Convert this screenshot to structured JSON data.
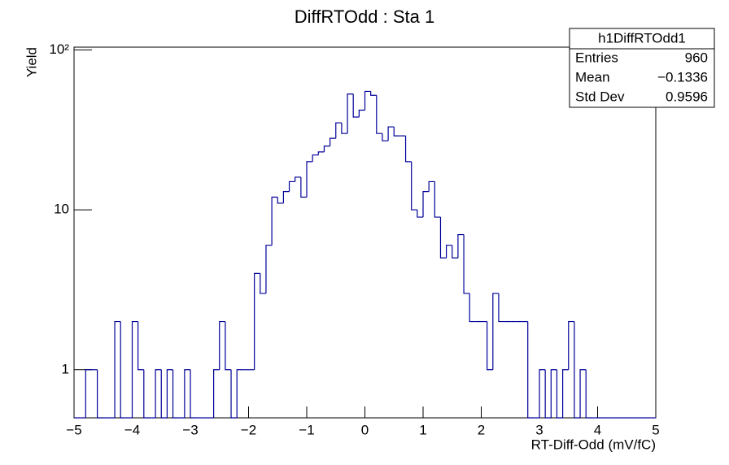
{
  "chart_data": {
    "type": "histogram",
    "title": "DiffRTOdd : Sta 1",
    "x_label": "RT-Diff-Odd (mV/fC)",
    "y_label": "Yield",
    "color": "#000099",
    "log_y": true,
    "bins": [
      -5,
      -4.9,
      -4.8,
      -4.7,
      -4.6,
      -4.5,
      -4.4,
      -4.3,
      -4.2,
      -4.1,
      -4,
      -3.9,
      -3.8,
      -3.7,
      -3.6,
      -3.5,
      -3.4,
      -3.3,
      -3.2,
      -3.1,
      -3,
      -2.9,
      -2.8,
      -2.7,
      -2.6,
      -2.5,
      -2.4,
      -2.3,
      -2.2,
      -2.1,
      -2,
      -1.9,
      -1.8,
      -1.7,
      -1.6,
      -1.5,
      -1.4,
      -1.3,
      -1.2,
      -1.1,
      -1,
      -0.9,
      -0.8,
      -0.7,
      -0.6,
      -0.5,
      -0.4,
      -0.3,
      -0.2,
      -0.1,
      0,
      0.1,
      0.2,
      0.3,
      0.4,
      0.5,
      0.6,
      0.7,
      0.8,
      0.9,
      1,
      1.1,
      1.2,
      1.3,
      1.4,
      1.5,
      1.6,
      1.7,
      1.8,
      1.9,
      2,
      2.1,
      2.2,
      2.3,
      2.4,
      2.5,
      2.6,
      2.7,
      2.8,
      2.9,
      3,
      3.1,
      3.2,
      3.3,
      3.4,
      3.5,
      3.6,
      3.7,
      3.8,
      3.9,
      4,
      4.1,
      4.2,
      4.3,
      4.4,
      4.5,
      4.6,
      4.7,
      4.8,
      4.9,
      5
    ],
    "counts": [
      0,
      0,
      1,
      1,
      0,
      0,
      0,
      2,
      0,
      0,
      2,
      1,
      0,
      0,
      1,
      0,
      1,
      0,
      0,
      1,
      0,
      0,
      0,
      0,
      1,
      2,
      1,
      0,
      1,
      1,
      1,
      4,
      3,
      6,
      12,
      11,
      13,
      15,
      16,
      12,
      20,
      22,
      23,
      25,
      28,
      35,
      30,
      53,
      38,
      42,
      55,
      52,
      30,
      27,
      33,
      29,
      29,
      20,
      10,
      9,
      13,
      15,
      9,
      5,
      6,
      5,
      7,
      3,
      2,
      2,
      2,
      1,
      3,
      2,
      2,
      2,
      2,
      2,
      0,
      0,
      1,
      0,
      1,
      0,
      1,
      2,
      0,
      1,
      0,
      0,
      0,
      0,
      0,
      0,
      0,
      0,
      0,
      0,
      0,
      0
    ],
    "xlim": [
      -5,
      5
    ],
    "ylim": [
      0.5,
      104
    ],
    "xticks": [
      {
        "value": -5,
        "label": "−5"
      },
      {
        "value": -4,
        "label": "−4"
      },
      {
        "value": -3,
        "label": "−3"
      },
      {
        "value": -2,
        "label": "−2"
      },
      {
        "value": -1,
        "label": "−1"
      },
      0,
      1,
      2,
      3,
      4,
      5
    ],
    "yticks": [
      1,
      10,
      {
        "value": 100,
        "label": "10²"
      }
    ],
    "stats": {
      "title": "h1DiffRTOdd1",
      "rows": [
        {
          "label": "Entries",
          "value": 960
        },
        {
          "label": "Mean",
          "value": -0.1336,
          "value_label": "−0.1336"
        },
        {
          "label": "Std Dev",
          "value": 0.9596
        }
      ]
    }
  }
}
